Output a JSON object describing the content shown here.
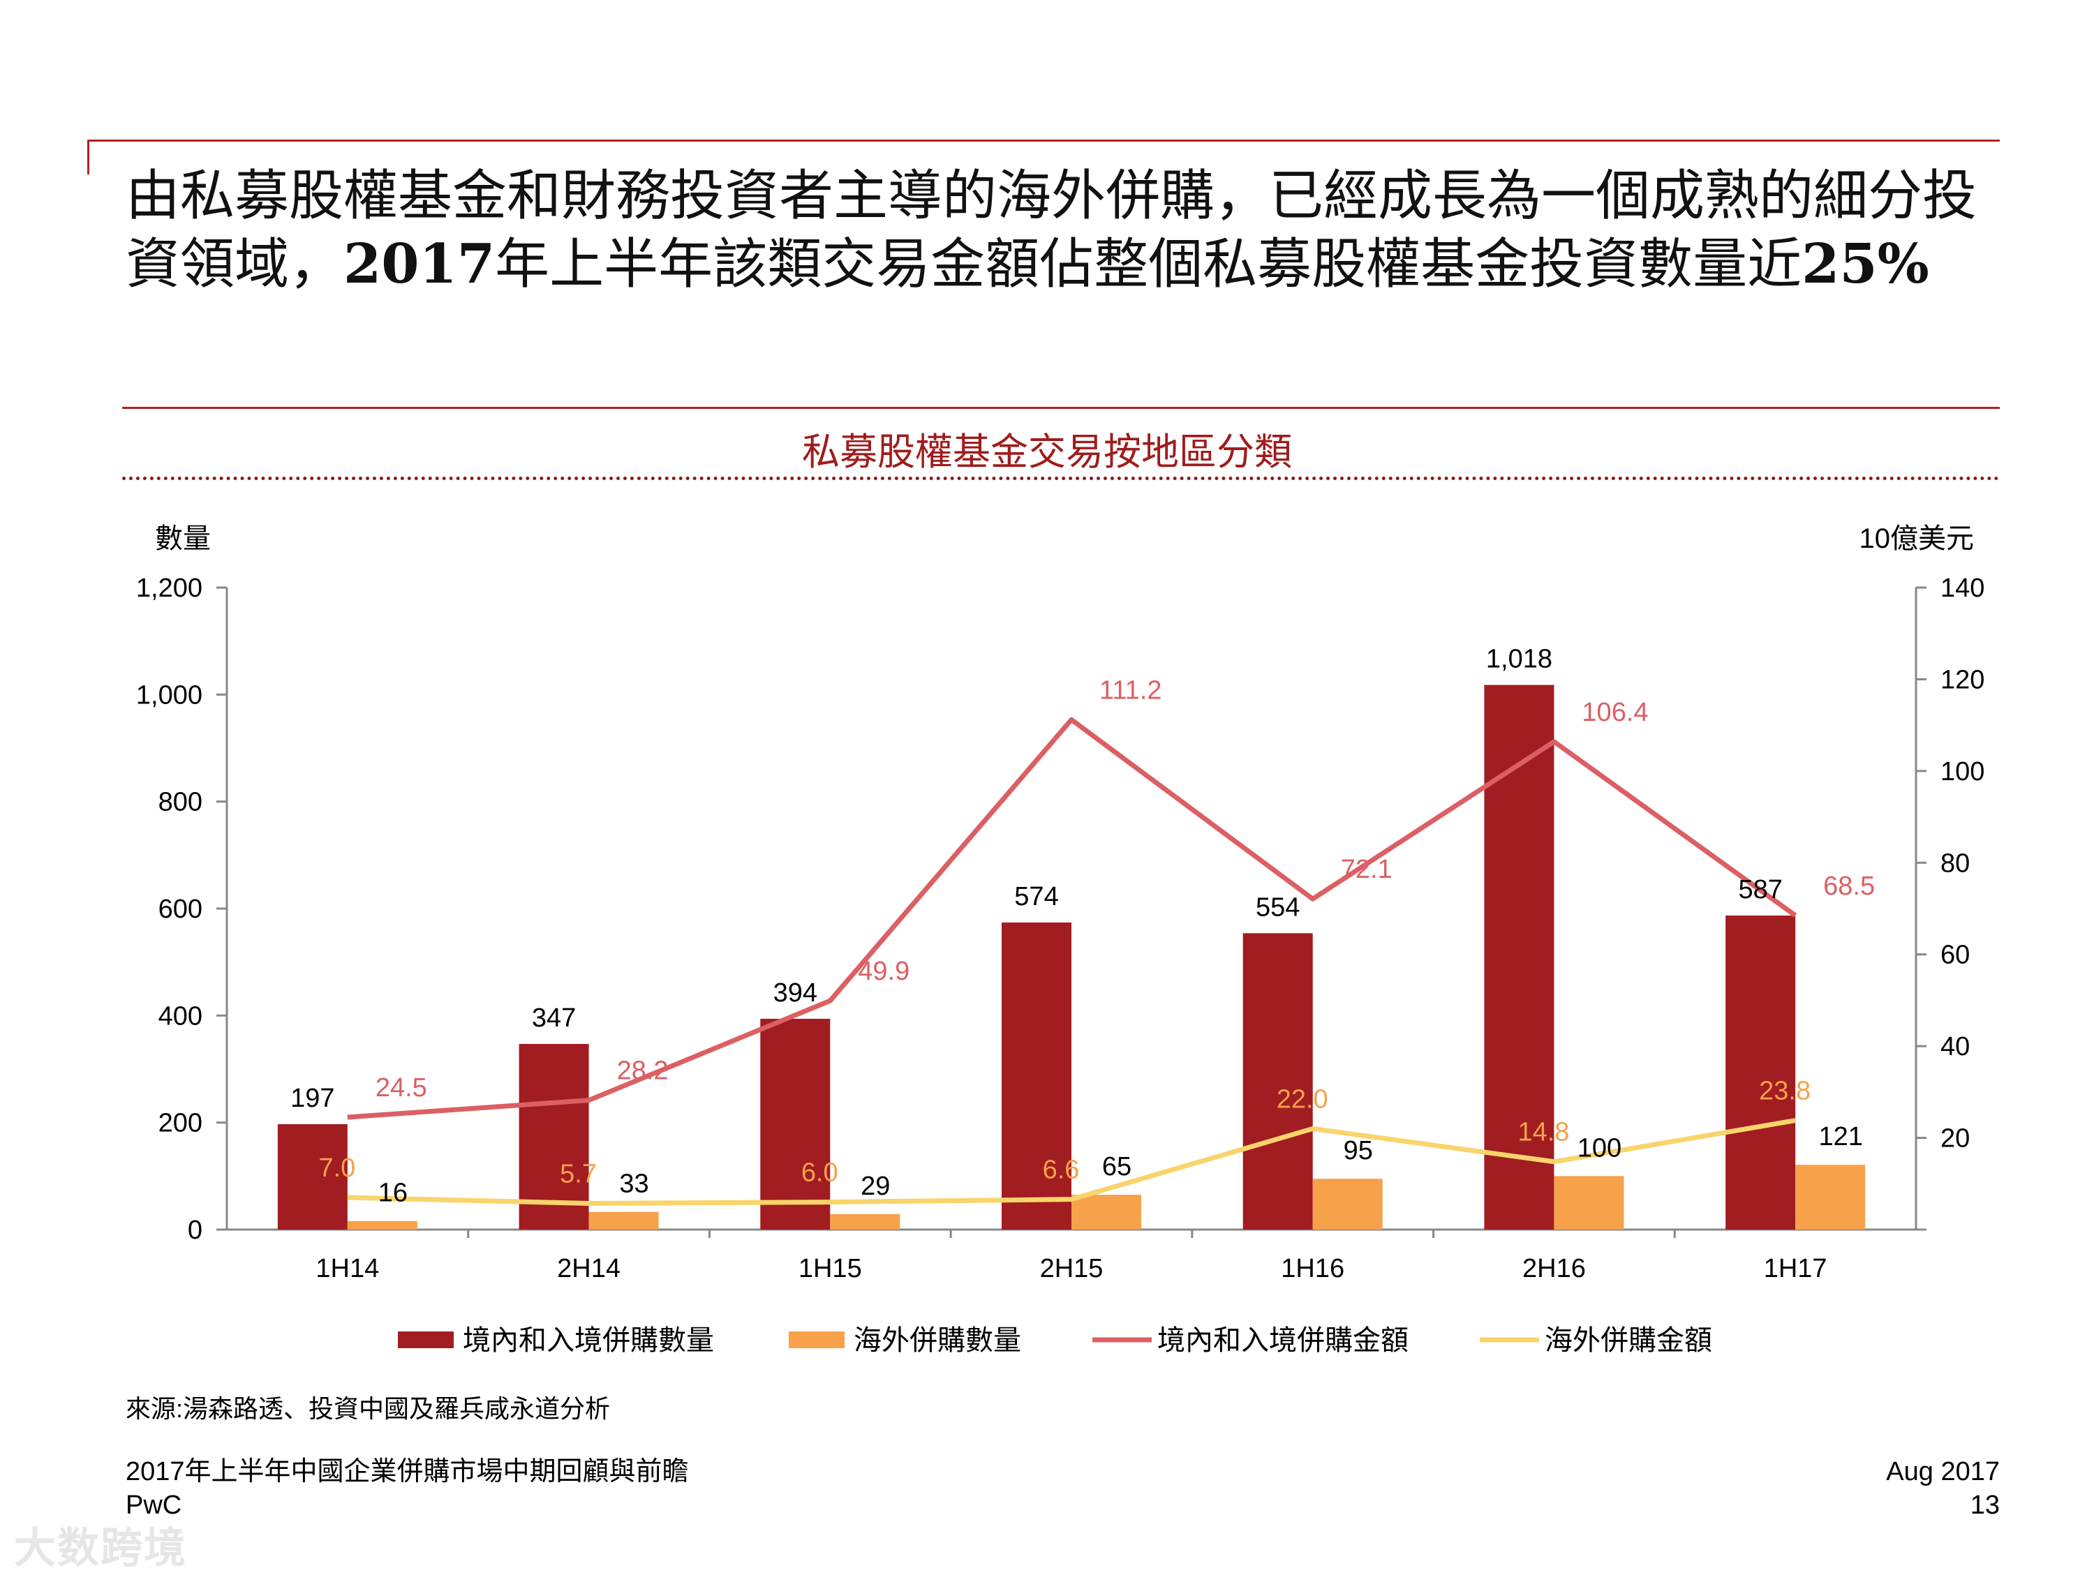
{
  "headline": {
    "part1": "由私募股權基金和財務投資者主導的海外併購，已經成長為一個成熟的細分投資領域，",
    "part2": "2017",
    "part3": "年上半年該類交易金額佔整個私募股權基金投資數量近",
    "part4": "25%"
  },
  "chart_title": "私募股權基金交易按地區分類",
  "source": "來源:湯森路透、投資中國及羅兵咸永道分析",
  "footer": {
    "left_line1": "2017年上半年中國企業併購市場中期回顧與前瞻",
    "left_line2": "PwC",
    "right_line1": "Aug 2017",
    "right_line2": "13"
  },
  "watermark": "大数跨境",
  "chart_data": {
    "type": "bar",
    "categories": [
      "1H14",
      "2H14",
      "1H15",
      "2H15",
      "1H16",
      "2H16",
      "1H17"
    ],
    "y_left_label": "數量",
    "y_right_label": "10億美元",
    "y_left_range": [
      0,
      1200
    ],
    "y_left_ticks": [
      "0",
      "200",
      "400",
      "600",
      "800",
      "1,000",
      "1,200"
    ],
    "y_right_range": [
      0,
      140
    ],
    "y_right_ticks": [
      "20",
      "40",
      "60",
      "80",
      "100",
      "120",
      "140"
    ],
    "series": [
      {
        "name": "境內和入境併購數量",
        "kind": "bar",
        "axis": "left",
        "color": "#a11d21",
        "values": [
          197,
          347,
          394,
          574,
          554,
          1018,
          587
        ],
        "labels": [
          "197",
          "347",
          "394",
          "574",
          "554",
          "1,018",
          "587"
        ]
      },
      {
        "name": "海外併購數量",
        "kind": "bar",
        "axis": "left",
        "color": "#f7a14a",
        "values": [
          16,
          33,
          29,
          65,
          95,
          100,
          121
        ],
        "labels": [
          "16",
          "33",
          "29",
          "65",
          "95",
          "100",
          "121"
        ]
      },
      {
        "name": "境內和入境併購金額",
        "kind": "line",
        "axis": "right",
        "color": "#db5f63",
        "values": [
          24.5,
          28.2,
          49.9,
          111.2,
          72.1,
          106.4,
          68.5
        ],
        "labels": [
          "24.5",
          "28.2",
          "49.9",
          "111.2",
          "72.1",
          "106.4",
          "68.5"
        ]
      },
      {
        "name": "海外併購金額",
        "kind": "line",
        "axis": "right",
        "color": "#f8d46b",
        "values": [
          7.0,
          5.7,
          6.0,
          6.6,
          22.0,
          14.8,
          23.8
        ],
        "labels": [
          "7.0",
          "5.7",
          "6.0",
          "6.6",
          "22.0",
          "14.8",
          "23.8"
        ]
      }
    ],
    "legend": "bottom",
    "grid": false,
    "label_colors": {
      "count": "#000000",
      "domestic_value": "#db5f63",
      "outbound_value": "#f7a14a"
    }
  }
}
